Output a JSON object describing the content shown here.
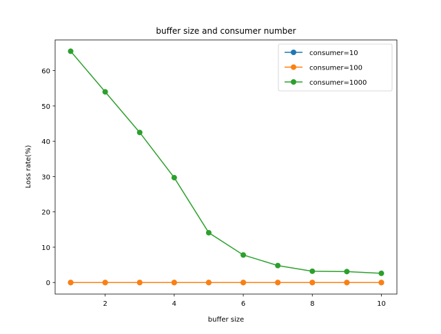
{
  "chart_data": {
    "type": "line",
    "title": "buffer size and consumer number",
    "xlabel": "buffer size",
    "ylabel": "Loss rate(%)",
    "xlim": [
      0.55,
      10.45
    ],
    "ylim": [
      -3.27,
      68.7
    ],
    "xticks": [
      2,
      4,
      6,
      8,
      10
    ],
    "yticks": [
      0,
      10,
      20,
      30,
      40,
      50,
      60
    ],
    "grid": false,
    "legend_position": "top-right",
    "x": [
      1,
      2,
      3,
      4,
      5,
      6,
      7,
      8,
      9,
      10
    ],
    "series": [
      {
        "name": "consumer=10",
        "color": "#1f77b4",
        "marker": "circle",
        "values": [
          0,
          0,
          0,
          0,
          0,
          0,
          0,
          0,
          0,
          0
        ]
      },
      {
        "name": "consumer=100",
        "color": "#ff7f0e",
        "marker": "circle",
        "values": [
          0,
          0,
          0,
          0,
          0,
          0,
          0,
          0,
          0,
          0
        ]
      },
      {
        "name": "consumer=1000",
        "color": "#2ca02c",
        "marker": "circle",
        "values": [
          65.5,
          54.0,
          42.5,
          29.7,
          14.1,
          7.8,
          4.8,
          3.2,
          3.1,
          2.6
        ]
      }
    ]
  }
}
